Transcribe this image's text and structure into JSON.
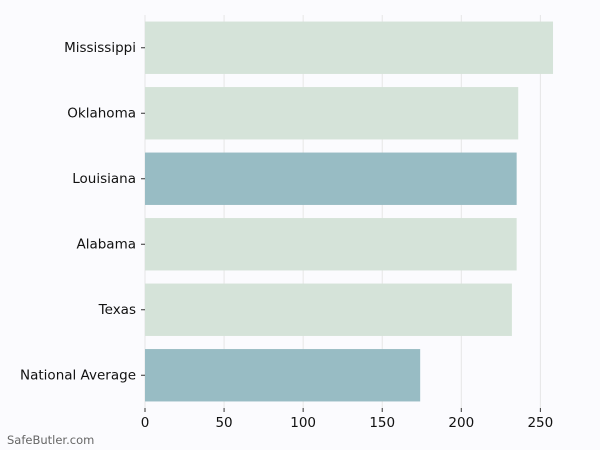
{
  "chart_data": {
    "type": "bar",
    "orientation": "horizontal",
    "title": "",
    "xlabel": "",
    "ylabel": "",
    "categories": [
      "Mississippi",
      "Oklahoma",
      "Louisiana",
      "Alabama",
      "Texas",
      "National Average"
    ],
    "values": [
      258,
      236,
      235,
      235,
      232,
      174
    ],
    "highlighted": [
      false,
      false,
      true,
      false,
      false,
      true
    ],
    "xlim": [
      0,
      270
    ],
    "xticks": [
      0,
      50,
      100,
      150,
      200,
      250
    ],
    "grid": true,
    "colors": {
      "default": "#d5e3d9",
      "highlight": "#98bcc4",
      "grid": "#e6e6e6",
      "axis": "#333333"
    }
  },
  "watermark": "SafeButler.com"
}
